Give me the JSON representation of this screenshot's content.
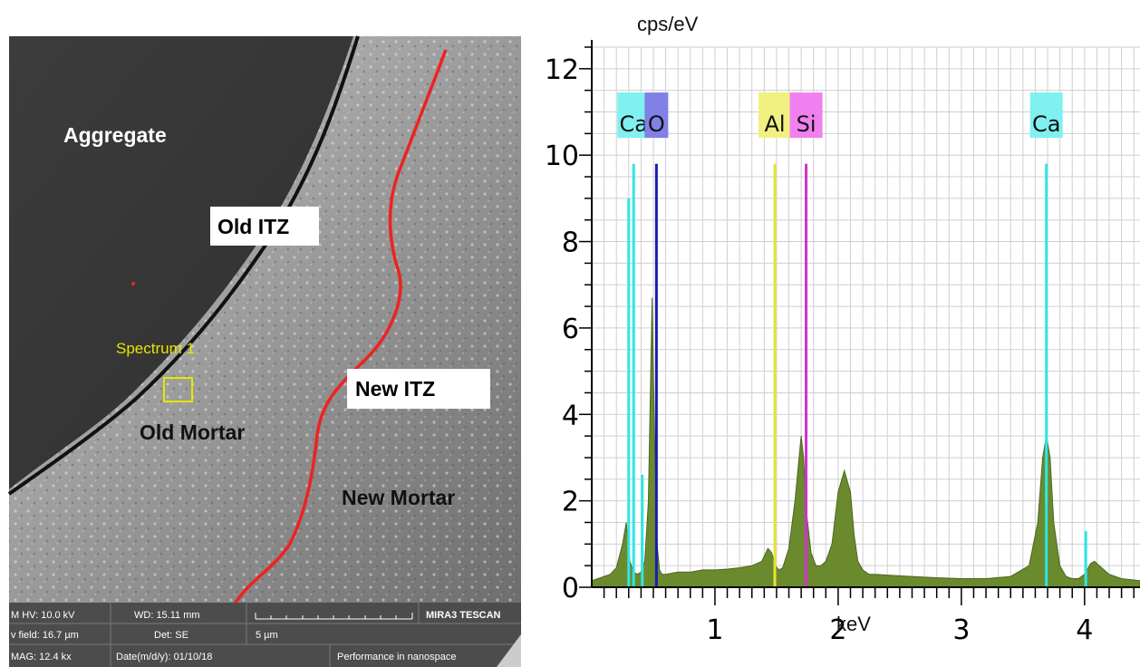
{
  "sem": {
    "labels": {
      "aggregate": "Aggregate",
      "old_itz": "Old ITZ",
      "new_itz": "New ITZ",
      "old_mortar": "Old Mortar",
      "new_mortar": "New Mortar",
      "spectrum": "Spectrum 1"
    },
    "infobar": {
      "hv": "M HV: 10.0 kV",
      "wd": "WD: 15.11 mm",
      "brand": "MIRA3 TESCAN",
      "field": "v field: 16.7 µm",
      "det": "Det: SE",
      "scale": "5 µm",
      "mag": "MAG: 12.4 kx",
      "date": "Date(m/d/y): 01/10/18",
      "tagline": "Performance in nanospace"
    }
  },
  "chart_data": {
    "type": "line",
    "title": "",
    "xlabel": "keV",
    "ylabel": "cps/eV",
    "xlim": [
      0,
      4.45
    ],
    "ylim": [
      0,
      12.5
    ],
    "x_ticks": [
      1,
      2,
      3,
      4
    ],
    "y_ticks": [
      0,
      2,
      4,
      6,
      8,
      10,
      12
    ],
    "grid": true,
    "series": [
      {
        "type": "area",
        "color": "#6b8a2e",
        "x": [
          0.0,
          0.05,
          0.1,
          0.15,
          0.2,
          0.25,
          0.28,
          0.31,
          0.34,
          0.37,
          0.4,
          0.43,
          0.46,
          0.49,
          0.51,
          0.53,
          0.55,
          0.57,
          0.6,
          0.7,
          0.8,
          0.9,
          1.0,
          1.1,
          1.2,
          1.3,
          1.38,
          1.43,
          1.46,
          1.49,
          1.52,
          1.55,
          1.6,
          1.65,
          1.7,
          1.72,
          1.74,
          1.78,
          1.82,
          1.86,
          1.9,
          1.95,
          2.0,
          2.05,
          2.1,
          2.13,
          2.16,
          2.2,
          2.25,
          2.3,
          2.4,
          2.6,
          2.8,
          3.0,
          3.2,
          3.4,
          3.55,
          3.62,
          3.66,
          3.69,
          3.72,
          3.75,
          3.8,
          3.85,
          3.9,
          3.95,
          4.0,
          4.05,
          4.08,
          4.12,
          4.2,
          4.3,
          4.45
        ],
        "y": [
          0.15,
          0.2,
          0.25,
          0.3,
          0.45,
          1.0,
          1.5,
          0.6,
          0.35,
          0.3,
          0.35,
          0.6,
          2.0,
          6.7,
          3.5,
          1.0,
          0.4,
          0.3,
          0.3,
          0.35,
          0.35,
          0.4,
          0.4,
          0.42,
          0.45,
          0.5,
          0.6,
          0.9,
          0.8,
          0.5,
          0.4,
          0.45,
          0.9,
          2.0,
          3.5,
          3.0,
          1.8,
          0.8,
          0.5,
          0.5,
          0.6,
          1.0,
          2.2,
          2.7,
          2.2,
          1.2,
          0.6,
          0.4,
          0.3,
          0.3,
          0.28,
          0.25,
          0.22,
          0.2,
          0.2,
          0.25,
          0.5,
          1.5,
          3.0,
          3.5,
          3.0,
          1.5,
          0.5,
          0.25,
          0.2,
          0.2,
          0.3,
          0.55,
          0.6,
          0.5,
          0.3,
          0.2,
          0.15
        ]
      }
    ],
    "element_markers": [
      {
        "label": "Ca",
        "x": 0.34,
        "height": 9.8,
        "color": "#2ee6e6",
        "label_bg": "#80f0f0",
        "show_label": true
      },
      {
        "label": "",
        "x": 0.3,
        "height": 9.0,
        "color": "#2ee6e6",
        "show_label": false
      },
      {
        "label": "O",
        "x": 0.525,
        "height": 9.8,
        "color": "#1a1ab3",
        "label_bg": "#8080e6",
        "show_label": true
      },
      {
        "label": "Al",
        "x": 1.486,
        "height": 9.8,
        "color": "#e6e62e",
        "label_bg": "#f0f080",
        "show_label": true
      },
      {
        "label": "Si",
        "x": 1.74,
        "height": 9.8,
        "color": "#cc33cc",
        "label_bg": "#f080f0",
        "show_label": true
      },
      {
        "label": "Ca",
        "x": 3.69,
        "height": 9.8,
        "color": "#2ee6e6",
        "label_bg": "#80f0f0",
        "show_label": true
      },
      {
        "label": "",
        "x": 4.01,
        "height": 1.3,
        "color": "#2ee6e6",
        "show_label": false
      },
      {
        "label": "",
        "x": 0.41,
        "height": 2.6,
        "color": "#2ee6e6",
        "show_label": false
      }
    ]
  }
}
